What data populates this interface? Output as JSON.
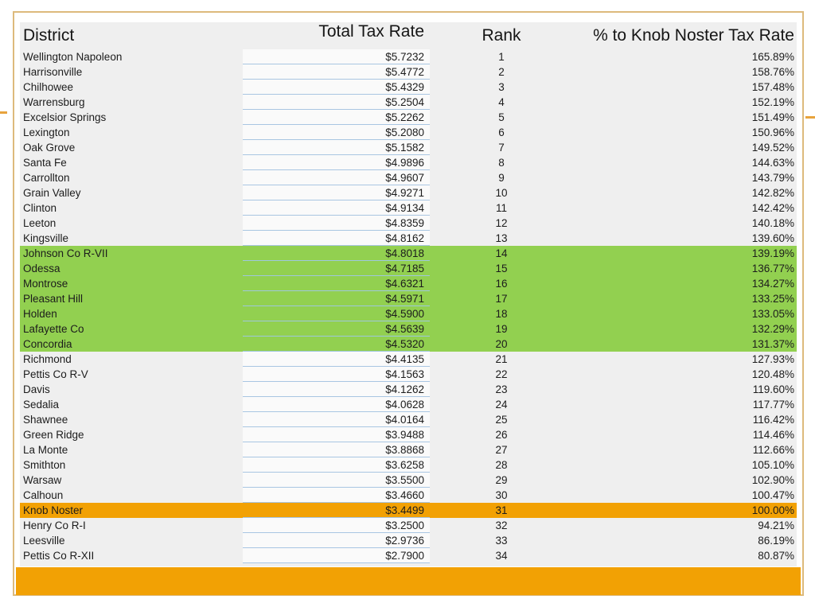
{
  "slide": {
    "border_color": "#ddba7c",
    "table_background": "#efefef",
    "highlight_green": "#92d050",
    "highlight_orange": "#f2a104",
    "footer_bar_color": "#f2a104"
  },
  "table": {
    "columns": {
      "district": "District",
      "rate": "Total Tax Rate",
      "rank": "Rank",
      "pct": "% to Knob Noster Tax Rate"
    },
    "rows": [
      {
        "district": "Wellington Napoleon",
        "rate": "$5.7232",
        "rank": "1",
        "pct": "165.89%",
        "highlight": "none"
      },
      {
        "district": "Harrisonville",
        "rate": "$5.4772",
        "rank": "2",
        "pct": "158.76%",
        "highlight": "none"
      },
      {
        "district": "Chilhowee",
        "rate": "$5.4329",
        "rank": "3",
        "pct": "157.48%",
        "highlight": "none"
      },
      {
        "district": "Warrensburg",
        "rate": "$5.2504",
        "rank": "4",
        "pct": "152.19%",
        "highlight": "none"
      },
      {
        "district": "Excelsior Springs",
        "rate": "$5.2262",
        "rank": "5",
        "pct": "151.49%",
        "highlight": "none"
      },
      {
        "district": "Lexington",
        "rate": "$5.2080",
        "rank": "6",
        "pct": "150.96%",
        "highlight": "none"
      },
      {
        "district": "Oak Grove",
        "rate": "$5.1582",
        "rank": "7",
        "pct": "149.52%",
        "highlight": "none"
      },
      {
        "district": "Santa Fe",
        "rate": "$4.9896",
        "rank": "8",
        "pct": "144.63%",
        "highlight": "none"
      },
      {
        "district": "Carrollton",
        "rate": "$4.9607",
        "rank": "9",
        "pct": "143.79%",
        "highlight": "none"
      },
      {
        "district": "Grain Valley",
        "rate": "$4.9271",
        "rank": "10",
        "pct": "142.82%",
        "highlight": "none"
      },
      {
        "district": "Clinton",
        "rate": "$4.9134",
        "rank": "11",
        "pct": "142.42%",
        "highlight": "none"
      },
      {
        "district": "Leeton",
        "rate": "$4.8359",
        "rank": "12",
        "pct": "140.18%",
        "highlight": "none"
      },
      {
        "district": "Kingsville",
        "rate": "$4.8162",
        "rank": "13",
        "pct": "139.60%",
        "highlight": "none"
      },
      {
        "district": "Johnson Co R-VII",
        "rate": "$4.8018",
        "rank": "14",
        "pct": "139.19%",
        "highlight": "green"
      },
      {
        "district": "Odessa",
        "rate": "$4.7185",
        "rank": "15",
        "pct": "136.77%",
        "highlight": "green"
      },
      {
        "district": "Montrose",
        "rate": "$4.6321",
        "rank": "16",
        "pct": "134.27%",
        "highlight": "green"
      },
      {
        "district": "Pleasant Hill",
        "rate": "$4.5971",
        "rank": "17",
        "pct": "133.25%",
        "highlight": "green"
      },
      {
        "district": "Holden",
        "rate": "$4.5900",
        "rank": "18",
        "pct": "133.05%",
        "highlight": "green"
      },
      {
        "district": "Lafayette Co",
        "rate": "$4.5639",
        "rank": "19",
        "pct": "132.29%",
        "highlight": "green"
      },
      {
        "district": "Concordia",
        "rate": "$4.5320",
        "rank": "20",
        "pct": "131.37%",
        "highlight": "green"
      },
      {
        "district": "Richmond",
        "rate": "$4.4135",
        "rank": "21",
        "pct": "127.93%",
        "highlight": "none"
      },
      {
        "district": "Pettis Co R-V",
        "rate": "$4.1563",
        "rank": "22",
        "pct": "120.48%",
        "highlight": "none"
      },
      {
        "district": "Davis",
        "rate": "$4.1262",
        "rank": "23",
        "pct": "119.60%",
        "highlight": "none"
      },
      {
        "district": "Sedalia",
        "rate": "$4.0628",
        "rank": "24",
        "pct": "117.77%",
        "highlight": "none"
      },
      {
        "district": "Shawnee",
        "rate": "$4.0164",
        "rank": "25",
        "pct": "116.42%",
        "highlight": "none"
      },
      {
        "district": "Green Ridge",
        "rate": "$3.9488",
        "rank": "26",
        "pct": "114.46%",
        "highlight": "none"
      },
      {
        "district": "La Monte",
        "rate": "$3.8868",
        "rank": "27",
        "pct": "112.66%",
        "highlight": "none"
      },
      {
        "district": "Smithton",
        "rate": "$3.6258",
        "rank": "28",
        "pct": "105.10%",
        "highlight": "none"
      },
      {
        "district": "Warsaw",
        "rate": "$3.5500",
        "rank": "29",
        "pct": "102.90%",
        "highlight": "none"
      },
      {
        "district": "Calhoun",
        "rate": "$3.4660",
        "rank": "30",
        "pct": "100.47%",
        "highlight": "none"
      },
      {
        "district": "Knob Noster",
        "rate": "$3.4499",
        "rank": "31",
        "pct": "100.00%",
        "highlight": "orange"
      },
      {
        "district": "Henry Co R-I",
        "rate": "$3.2500",
        "rank": "32",
        "pct": "94.21%",
        "highlight": "none"
      },
      {
        "district": "Leesville",
        "rate": "$2.9736",
        "rank": "33",
        "pct": "86.19%",
        "highlight": "none"
      },
      {
        "district": "Pettis Co R-XII",
        "rate": "$2.7900",
        "rank": "34",
        "pct": "80.87%",
        "highlight": "none"
      }
    ]
  }
}
